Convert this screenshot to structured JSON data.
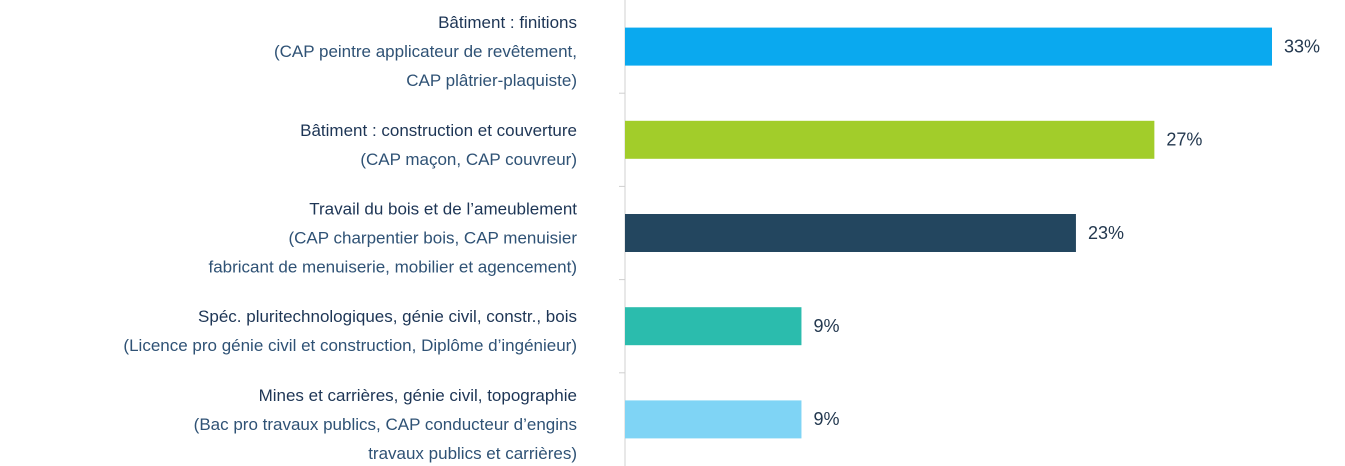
{
  "chart_data": {
    "type": "bar",
    "orientation": "horizontal",
    "categories": [
      "Bâtiment : finitions",
      "Bâtiment : construction et couverture",
      "Travail du bois et de l’ameublement",
      "Spéc. pluritechnologiques, génie civil, constr., bois",
      "Mines et carrières, génie civil, topographie"
    ],
    "category_notes": [
      [
        "(CAP peintre applicateur de revêtement,",
        "CAP plâtrier-plaquiste)"
      ],
      [
        "(CAP maçon, CAP couvreur)"
      ],
      [
        "(CAP charpentier bois, CAP menuisier",
        "fabricant de menuiserie, mobilier et agencement)"
      ],
      [
        "(Licence pro génie civil et construction, Diplôme d’ingénieur)"
      ],
      [
        "(Bac pro travaux publics, CAP conducteur d’engins",
        "travaux publics et carrières)"
      ]
    ],
    "values": [
      33,
      27,
      23,
      9,
      9
    ],
    "value_labels": [
      "33%",
      "27%",
      "23%",
      "9%",
      "9%"
    ],
    "colors": [
      "#0aa9ef",
      "#a2cd2a",
      "#23465f",
      "#2bbcad",
      "#7fd4f5"
    ]
  }
}
